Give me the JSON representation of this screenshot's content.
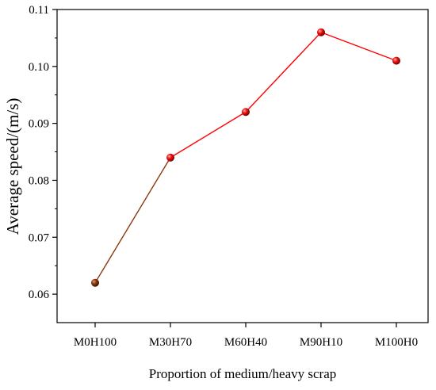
{
  "chart_data": {
    "type": "line",
    "categories": [
      "M0H100",
      "M30H70",
      "M60H40",
      "M90H10",
      "M100H0"
    ],
    "series": [
      {
        "values": [
          0.062,
          0.084,
          0.092,
          0.106,
          0.101
        ]
      }
    ],
    "xlabel": "Proportion of medium/heavy scrap",
    "ylabel": "Average speed/(m/s)",
    "ylim": [
      0.055,
      0.11
    ],
    "yticks": [
      "0.06",
      "0.07",
      "0.08",
      "0.09",
      "0.10",
      "0.11"
    ],
    "grid": false,
    "line_color": "#ff0000",
    "marker_color": "#e00000",
    "first_marker_color": "#8b3a0e"
  }
}
